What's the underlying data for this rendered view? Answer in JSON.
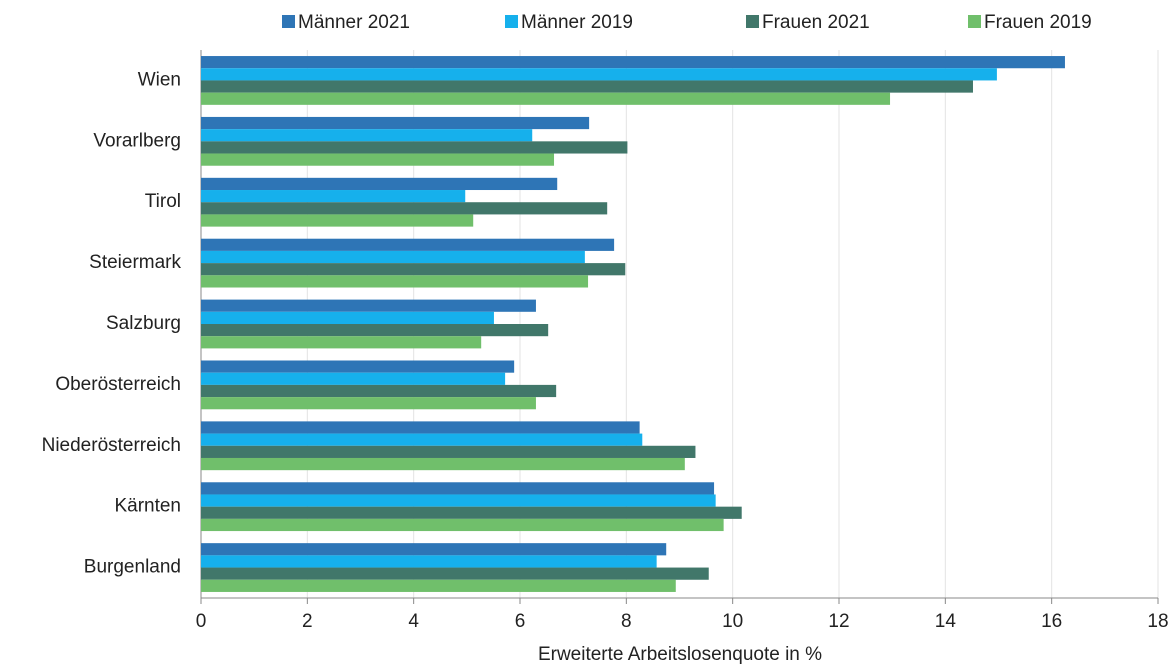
{
  "chart_data": {
    "type": "barh",
    "xlabel": "Erweiterte Arbeitslosenquote in %",
    "categories": [
      "Wien",
      "Vorarlberg",
      "Tirol",
      "Steiermark",
      "Salzburg",
      "Oberösterreich",
      "Niederösterreich",
      "Kärnten",
      "Burgenland"
    ],
    "series": [
      {
        "name": "Männer 2021",
        "color": "#2e75b6",
        "values": [
          16.25,
          7.3,
          6.7,
          7.77,
          6.3,
          5.89,
          8.25,
          9.65,
          8.75
        ]
      },
      {
        "name": "Männer 2019",
        "color": "#16b0ec",
        "values": [
          14.97,
          6.23,
          4.97,
          7.22,
          5.51,
          5.72,
          8.3,
          9.68,
          8.57
        ]
      },
      {
        "name": "Frauen 2021",
        "color": "#41776a",
        "values": [
          14.52,
          8.02,
          7.64,
          7.98,
          6.53,
          6.68,
          9.3,
          10.17,
          9.55
        ]
      },
      {
        "name": "Frauen 2019",
        "color": "#70bf6b",
        "values": [
          12.96,
          6.64,
          5.12,
          7.28,
          5.27,
          6.3,
          9.1,
          9.83,
          8.93
        ]
      }
    ],
    "xlim": [
      0,
      18
    ],
    "xticks": [
      0,
      2,
      4,
      6,
      8,
      10,
      12,
      14,
      16,
      18
    ],
    "grid": true,
    "legend": "top"
  }
}
